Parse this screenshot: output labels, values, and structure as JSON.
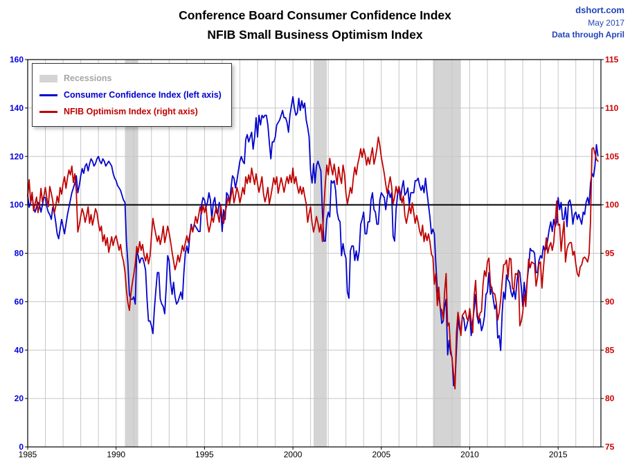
{
  "header": {
    "title_line1": "Conference Board Consumer Confidence Index",
    "title_line2": "NFIB Small Business Optimism Index",
    "source": "dshort.com",
    "date": "May 2017",
    "note": "Data through April"
  },
  "legend": {
    "recessions_label": "Recessions",
    "cci_label": "Consumer Confidence Index (left axis)",
    "nfib_label": "NFIB Optimism Index (right axis)"
  },
  "colors": {
    "cci": "#0000cd",
    "nfib": "#c00000",
    "recession": "#d4d4d4",
    "grid": "#c6c6c6",
    "reference_line": "#000000",
    "left_axis_text": "#0000dd",
    "right_axis_text": "#cc0000",
    "x_axis_text": "#000000",
    "header_text": "#2244bb",
    "legend_recessions_text": "#a6a6a6",
    "frame": "#000000"
  },
  "chart_data": {
    "type": "line",
    "title": "Conference Board Consumer Confidence Index / NFIB Small Business Optimism Index",
    "xlabel": "",
    "ylabel_left": "Consumer Confidence Index",
    "ylabel_right": "NFIB Optimism Index",
    "grid": true,
    "legend_position": "top-left",
    "x_start_year": 1985,
    "points_per_year": 12,
    "x_range": [
      1985,
      2017.42
    ],
    "left_axis": {
      "min": 0,
      "max": 160,
      "step": 20
    },
    "right_axis": {
      "min": 75,
      "max": 115,
      "step": 5
    },
    "x_ticks": [
      1985,
      1990,
      1995,
      2000,
      2005,
      2010,
      2015
    ],
    "reference_line_left": 100,
    "recessions": [
      [
        1990.5,
        1991.25
      ],
      [
        2001.17,
        2001.92
      ],
      [
        2007.92,
        2009.5
      ]
    ],
    "series": [
      {
        "name": "Consumer Confidence Index",
        "axis": "left",
        "color": "#0000cd",
        "values": [
          104,
          99,
          101,
          104,
          99,
          97,
          99,
          101,
          100,
          97,
          100,
          103,
          103,
          99,
          97,
          96,
          94,
          99,
          97,
          93,
          88,
          86,
          90,
          94,
          91,
          88,
          92,
          96,
          99,
          102,
          105,
          107,
          109,
          112,
          105,
          108,
          112,
          115,
          113,
          116,
          117,
          114,
          117,
          119,
          118,
          116,
          117,
          119,
          120,
          118,
          117,
          119,
          118,
          116,
          117,
          118,
          117,
          116,
          113,
          111,
          110,
          108,
          107,
          106,
          104,
          102,
          101,
          85,
          76,
          63,
          61,
          61,
          62,
          59,
          81,
          79,
          76,
          78,
          78,
          76,
          73,
          61,
          52,
          52,
          50,
          46.8,
          57,
          65,
          72,
          72,
          61,
          59,
          58,
          55,
          66,
          79,
          77,
          68,
          63,
          68,
          62,
          59,
          60,
          62,
          64,
          61,
          72,
          80,
          83,
          80,
          87,
          92,
          89,
          92,
          91,
          90,
          89,
          89,
          100,
          103,
          102,
          99,
          101,
          105,
          102,
          94,
          101,
          103,
          97,
          96,
          101,
          99,
          89,
          98,
          94,
          105,
          104,
          101,
          107,
          112,
          111,
          107,
          110,
          114,
          118,
          120,
          118,
          117,
          127,
          129,
          126,
          128,
          130,
          123,
          128,
          136,
          128,
          137,
          133,
          137,
          136,
          137,
          137,
          133,
          126,
          119,
          126,
          126,
          128,
          133,
          134,
          135,
          137,
          139,
          136,
          136,
          134,
          130,
          137,
          141,
          144.7,
          140,
          137,
          138,
          144,
          139,
          143,
          140,
          142,
          135,
          132,
          128,
          114,
          109,
          117,
          109,
          116,
          118,
          116,
          114,
          97,
          85,
          85,
          94,
          97,
          95,
          110,
          109,
          110,
          106,
          97,
          94,
          93,
          79,
          84,
          80,
          78,
          64,
          61.4,
          81,
          83,
          83,
          77,
          81,
          77,
          81,
          92,
          94,
          97,
          88,
          88,
          93,
          93,
          102,
          105,
          98,
          97,
          92,
          92,
          102,
          105,
          104,
          103,
          98,
          103,
          106,
          103,
          105,
          87,
          85,
          98,
          104,
          107,
          102,
          107,
          110,
          104,
          105,
          107,
          100,
          105,
          105,
          105,
          110,
          110,
          111,
          108,
          106,
          108,
          105,
          111,
          105,
          100,
          95,
          88,
          90,
          88,
          76,
          65,
          62,
          58,
          51,
          52,
          58,
          61,
          38,
          44,
          38.6,
          37,
          25.3,
          26,
          40,
          54,
          49,
          47,
          54,
          53,
          48,
          50,
          53,
          56,
          46,
          52,
          57,
          63,
          54,
          51,
          53,
          48,
          50,
          54,
          63,
          64,
          72,
          63,
          66,
          61,
          57,
          59,
          45,
          46,
          39.8,
          55,
          64,
          61,
          71,
          69,
          68,
          64,
          62,
          65,
          61,
          68,
          73,
          72,
          66,
          58,
          68,
          61,
          69,
          74,
          82,
          81,
          81,
          80,
          72,
          72,
          77,
          79,
          78,
          83,
          81,
          82,
          86,
          90,
          93,
          89,
          94,
          91,
          93,
          103,
          98,
          101,
          94,
          94,
          99,
          91,
          101,
          102,
          99,
          92,
          96,
          97,
          94,
          96,
          94,
          92,
          97,
          96,
          101,
          103,
          100,
          109,
          113,
          111.6,
          116.1,
          124.9,
          120.3
        ]
      },
      {
        "name": "NFIB Optimism Index",
        "axis": "right",
        "color": "#c00000",
        "values": [
          100.9,
          102.6,
          100.2,
          101.3,
          99.4,
          100.1,
          100.8,
          99.2,
          100.0,
          101.7,
          100.3,
          100.9,
          101.8,
          100.7,
          99.8,
          101.9,
          101.2,
          100.4,
          99.1,
          99.8,
          100.9,
          100.2,
          101.8,
          101.1,
          102.2,
          102.9,
          101.7,
          102.8,
          103.6,
          103.1,
          104.0,
          102.3,
          103.2,
          101.4,
          97.2,
          97.9,
          98.8,
          99.6,
          99.1,
          98.2,
          98.9,
          99.8,
          98.1,
          99.0,
          97.9,
          98.7,
          99.6,
          99.2,
          98.1,
          97.3,
          97.8,
          96.2,
          96.9,
          95.8,
          96.6,
          95.1,
          95.9,
          96.7,
          95.8,
          96.5,
          96.8,
          96.1,
          95.3,
          95.9,
          94.8,
          94.2,
          93.1,
          91.2,
          89.9,
          89.1,
          90.8,
          91.9,
          92.8,
          93.9,
          95.7,
          95.1,
          96.2,
          95.3,
          95.9,
          94.8,
          94.2,
          95.0,
          93.9,
          94.7,
          96.8,
          98.6,
          97.7,
          96.9,
          96.2,
          96.8,
          95.9,
          96.7,
          97.8,
          96.1,
          96.9,
          97.8,
          97.1,
          96.2,
          95.1,
          94.2,
          93.3,
          93.9,
          94.8,
          94.1,
          94.9,
          95.8,
          95.2,
          96.1,
          96.8,
          96.1,
          96.9,
          97.8,
          97.2,
          97.9,
          98.8,
          98.1,
          98.9,
          99.8,
          99.1,
          99.9,
          99.2,
          99.9,
          98.1,
          97.2,
          97.9,
          98.8,
          98.2,
          99.1,
          99.8,
          99.0,
          98.2,
          99.9,
          98.8,
          98.1,
          99.2,
          99.9,
          100.8,
          100.1,
          100.9,
          101.8,
          100.2,
          100.9,
          101.8,
          101.2,
          100.2,
          100.9,
          101.8,
          101.1,
          102.9,
          102.2,
          103.1,
          102.3,
          103.8,
          102.9,
          102.1,
          103.2,
          102.2,
          101.3,
          102.1,
          102.9,
          101.2,
          100.3,
          100.9,
          101.8,
          100.1,
          100.9,
          101.8,
          102.8,
          102.1,
          102.9,
          101.2,
          102.0,
          102.8,
          102.1,
          101.3,
          102.2,
          102.9,
          102.2,
          103.1,
          102.3,
          103.8,
          102.2,
          102.9,
          101.9,
          101.2,
          101.9,
          101.1,
          101.8,
          100.9,
          100.1,
          98.2,
          99.1,
          99.8,
          98.1,
          97.2,
          97.9,
          98.8,
          98.1,
          97.2,
          98.0,
          96.2,
          99.8,
          102.2,
          104.1,
          103.1,
          104.8,
          103.9,
          103.1,
          104.2,
          103.2,
          102.1,
          103.9,
          102.9,
          102.2,
          104.1,
          103.2,
          101.2,
          100.1,
          100.9,
          101.8,
          101.2,
          102.8,
          103.9,
          103.1,
          104.2,
          104.9,
          105.8,
          104.9,
          105.8,
          105.2,
          104.1,
          104.9,
          104.2,
          105.1,
          105.9,
          104.2,
          104.9,
          105.8,
          107.0,
          106.1,
          104.9,
          104.1,
          103.2,
          102.1,
          101.2,
          102.0,
          102.9,
          101.9,
          100.1,
          100.8,
          101.9,
          101.2,
          101.9,
          101.1,
          100.2,
          100.9,
          98.9,
          98.1,
          98.9,
          99.9,
          99.1,
          100.2,
          99.2,
          98.1,
          98.9,
          98.2,
          97.3,
          96.8,
          97.9,
          96.2,
          97.1,
          96.3,
          97.0,
          96.2,
          94.9,
          94.6,
          91.8,
          92.9,
          89.6,
          91.5,
          89.3,
          89.2,
          88.2,
          91.1,
          92.9,
          87.5,
          87.8,
          85.2,
          84.1,
          82.6,
          81.0,
          86.8,
          88.9,
          87.9,
          86.5,
          88.6,
          88.8,
          89.1,
          88.3,
          88.0,
          89.3,
          88.0,
          86.8,
          90.6,
          92.2,
          89.0,
          88.1,
          88.8,
          89.0,
          91.7,
          93.2,
          92.6,
          94.1,
          94.5,
          91.9,
          91.2,
          90.9,
          90.8,
          89.9,
          88.1,
          88.9,
          90.2,
          92.0,
          93.8,
          93.9,
          94.3,
          92.5,
          94.5,
          94.4,
          91.4,
          91.2,
          92.9,
          92.8,
          93.1,
          87.5,
          88.0,
          88.9,
          90.8,
          89.5,
          92.1,
          94.4,
          93.5,
          94.1,
          94.0,
          93.9,
          91.6,
          92.5,
          93.9,
          94.1,
          91.4,
          93.4,
          95.2,
          96.6,
          95.0,
          95.7,
          96.1,
          95.3,
          96.1,
          98.1,
          100.4,
          97.9,
          98.0,
          95.2,
          96.9,
          98.3,
          94.1,
          95.4,
          95.9,
          96.1,
          96.1,
          94.8,
          95.2,
          93.9,
          92.9,
          92.6,
          93.6,
          93.8,
          94.5,
          94.6,
          94.4,
          94.1,
          94.9,
          98.4,
          105.8,
          105.9,
          105.3,
          104.7,
          104.5
        ]
      }
    ]
  }
}
